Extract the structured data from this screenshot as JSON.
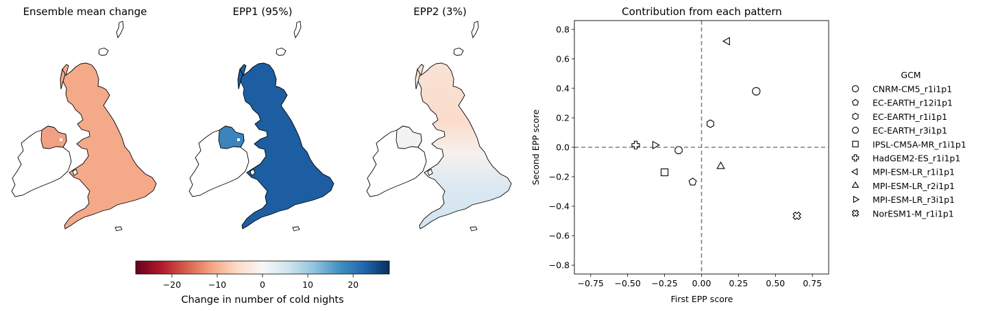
{
  "maps": [
    {
      "title": "Ensemble mean change",
      "fill": "#f4a989",
      "ireland_fill": "#f1a183",
      "has_gap": true
    },
    {
      "title": "EPP1 (95%)",
      "fill": "#1c5ea1",
      "ireland_fill": "#3b84be",
      "has_gap": true
    },
    {
      "title": "EPP2 (3%)",
      "fill": "gradient",
      "ireland_fill": "#f2f2f2",
      "has_gap": false
    }
  ],
  "colorbar": {
    "label": "Change in number of cold nights",
    "ticks": [
      "−20",
      "−10",
      "0",
      "10",
      "20"
    ],
    "tick_values": [
      -20,
      -10,
      0,
      10,
      20
    ],
    "range": [
      -28,
      28
    ],
    "colormap": "RdBu",
    "colors": [
      "#67001f",
      "#b2182b",
      "#d6604d",
      "#f4a582",
      "#fddbc7",
      "#f7f7f7",
      "#d1e5f0",
      "#92c5de",
      "#4393c3",
      "#2166ac",
      "#053061"
    ]
  },
  "chart_data": {
    "type": "scatter",
    "title": "Contribution from each pattern",
    "xlabel": "First EPP score",
    "ylabel": "Second EPP score",
    "xlim": [
      -0.86,
      0.86
    ],
    "ylim": [
      -0.86,
      0.86
    ],
    "xticks": [
      -0.75,
      -0.5,
      -0.25,
      0.0,
      0.25,
      0.5,
      0.75
    ],
    "xtick_labels": [
      "−0.75",
      "−0.50",
      "−0.25",
      "0.00",
      "0.25",
      "0.50",
      "0.75"
    ],
    "yticks": [
      0.8,
      0.6,
      0.4,
      0.2,
      0.0,
      -0.2,
      -0.4,
      -0.6,
      -0.8
    ],
    "ytick_labels": [
      "0.8",
      "0.6",
      "0.4",
      "0.2",
      "0.0",
      "−0.2",
      "−0.4",
      "−0.6",
      "−0.8"
    ],
    "reference_lines": {
      "x": 0.0,
      "y": 0.0,
      "style": "dashed",
      "color": "#808080"
    },
    "legend_title": "GCM",
    "legend_position": "right, outside",
    "points": [
      {
        "name": "CNRM-CM5_r1i1p1",
        "marker": "circle",
        "x": 0.37,
        "y": 0.38
      },
      {
        "name": "EC-EARTH_r12i1p1",
        "marker": "pentagon",
        "x": -0.06,
        "y": -0.235
      },
      {
        "name": "EC-EARTH_r1i1p1",
        "marker": "hexagon",
        "x": 0.06,
        "y": 0.16
      },
      {
        "name": "EC-EARTH_r3i1p1",
        "marker": "octagon",
        "x": -0.155,
        "y": -0.02
      },
      {
        "name": "IPSL-CM5A-MR_r1i1p1",
        "marker": "square",
        "x": -0.25,
        "y": -0.17
      },
      {
        "name": "HadGEM2-ES_r1i1p1",
        "marker": "plus",
        "x": -0.445,
        "y": 0.015
      },
      {
        "name": "MPI-ESM-LR_r1i1p1",
        "marker": "triangle-left",
        "x": 0.175,
        "y": 0.72
      },
      {
        "name": "MPI-ESM-LR_r2i1p1",
        "marker": "triangle-up",
        "x": 0.13,
        "y": -0.13
      },
      {
        "name": "MPI-ESM-LR_r3i1p1",
        "marker": "triangle-right",
        "x": -0.315,
        "y": 0.015
      },
      {
        "name": "NorESM1-M_r1i1p1",
        "marker": "x-filled",
        "x": 0.645,
        "y": -0.465
      }
    ]
  }
}
